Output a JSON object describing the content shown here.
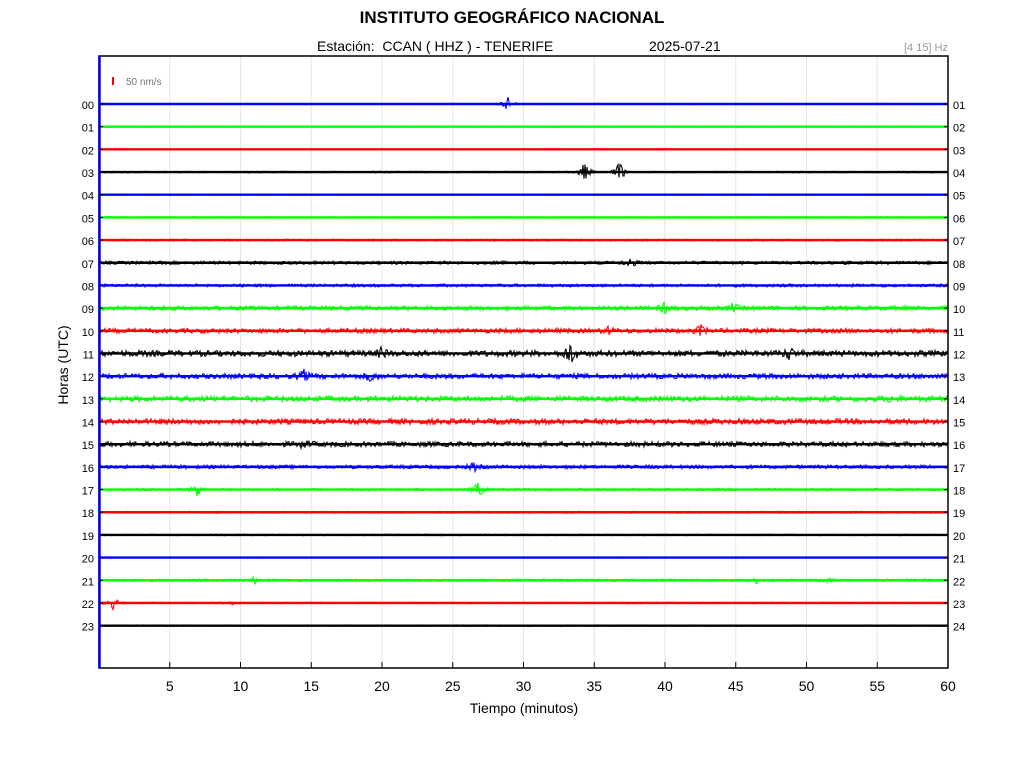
{
  "header": {
    "title": "INSTITUTO GEOGRÁFICO NACIONAL",
    "station": "Estación:  CCAN ( HHZ ) - TENERIFE",
    "date": "2025-07-21",
    "filter": "[4 15] Hz"
  },
  "scale_bar": {
    "label": "50 nm/s",
    "color": "#ff0000"
  },
  "chart_data": {
    "type": "line",
    "title": "INSTITUTO GEOGRÁFICO NACIONAL",
    "xlabel": "Tiempo (minutos)",
    "ylabel": "Horas (UTC)",
    "xlim": [
      0,
      60
    ],
    "x_ticks": [
      5,
      10,
      15,
      20,
      25,
      30,
      35,
      40,
      45,
      50,
      55,
      60
    ],
    "grid": true,
    "trace_colors": [
      "#0000ff",
      "#00ff00",
      "#ff0000",
      "#000000"
    ],
    "traces": [
      {
        "left": "00",
        "right": "01",
        "noise": 0.6,
        "events": [
          {
            "t": 28.9,
            "amp": 8
          }
        ]
      },
      {
        "left": "01",
        "right": "02",
        "noise": 0.5,
        "events": []
      },
      {
        "left": "02",
        "right": "03",
        "noise": 0.4,
        "events": []
      },
      {
        "left": "03",
        "right": "04",
        "noise": 0.8,
        "events": [
          {
            "t": 34.3,
            "amp": 10
          },
          {
            "t": 36.8,
            "amp": 11
          }
        ]
      },
      {
        "left": "04",
        "right": "05",
        "noise": 0.4,
        "events": []
      },
      {
        "left": "05",
        "right": "06",
        "noise": 0.8,
        "events": []
      },
      {
        "left": "06",
        "right": "07",
        "noise": 1.0,
        "events": []
      },
      {
        "left": "07",
        "right": "08",
        "noise": 1.6,
        "events": [
          {
            "t": 37.5,
            "amp": 5
          }
        ]
      },
      {
        "left": "08",
        "right": "09",
        "noise": 1.5,
        "events": []
      },
      {
        "left": "09",
        "right": "10",
        "noise": 2.2,
        "events": [
          {
            "t": 40,
            "amp": 5
          },
          {
            "t": 44.8,
            "amp": 4
          }
        ]
      },
      {
        "left": "10",
        "right": "11",
        "noise": 2.3,
        "events": [
          {
            "t": 42.5,
            "amp": 5
          },
          {
            "t": 36,
            "amp": 3
          }
        ]
      },
      {
        "left": "11",
        "right": "12",
        "noise": 3.0,
        "events": [
          {
            "t": 20,
            "amp": 5
          },
          {
            "t": 33.3,
            "amp": 12
          },
          {
            "t": 48.8,
            "amp": 6
          }
        ]
      },
      {
        "left": "12",
        "right": "13",
        "noise": 2.6,
        "events": [
          {
            "t": 14.5,
            "amp": 5
          },
          {
            "t": 19.2,
            "amp": 5
          }
        ]
      },
      {
        "left": "13",
        "right": "14",
        "noise": 2.8,
        "events": [
          {
            "t": 56,
            "amp": 3
          }
        ]
      },
      {
        "left": "14",
        "right": "15",
        "noise": 2.8,
        "events": []
      },
      {
        "left": "15",
        "right": "16",
        "noise": 2.5,
        "events": [
          {
            "t": 14.5,
            "amp": 4
          }
        ]
      },
      {
        "left": "16",
        "right": "17",
        "noise": 1.8,
        "events": [
          {
            "t": 26.5,
            "amp": 4
          }
        ]
      },
      {
        "left": "17",
        "right": "18",
        "noise": 1.2,
        "events": [
          {
            "t": 7,
            "amp": 9
          },
          {
            "t": 26.8,
            "amp": 9
          }
        ]
      },
      {
        "left": "18",
        "right": "19",
        "noise": 1.0,
        "events": []
      },
      {
        "left": "19",
        "right": "20",
        "noise": 0.8,
        "events": []
      },
      {
        "left": "20",
        "right": "21",
        "noise": 0.5,
        "events": []
      },
      {
        "left": "21",
        "right": "22",
        "noise": 1.2,
        "events": [
          {
            "t": 11,
            "amp": 3
          },
          {
            "t": 46.5,
            "amp": 3
          },
          {
            "t": 51.5,
            "amp": 3
          }
        ]
      },
      {
        "left": "22",
        "right": "23",
        "noise": 0.8,
        "events": [
          {
            "t": 1,
            "amp": 6
          },
          {
            "t": 9.3,
            "amp": 3
          }
        ]
      },
      {
        "left": "23",
        "right": "24",
        "noise": 0.7,
        "events": []
      }
    ]
  }
}
